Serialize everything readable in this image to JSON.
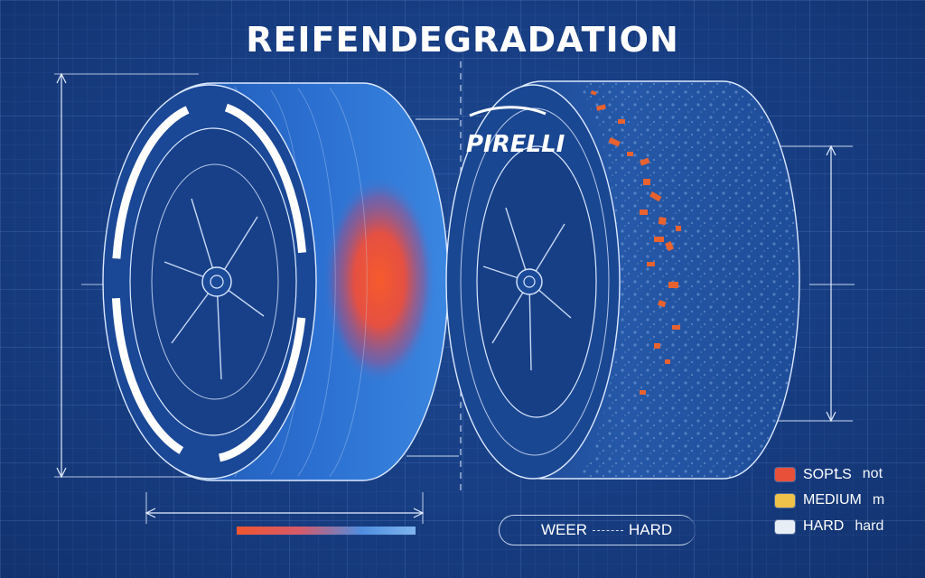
{
  "title": "REIFENDEGRADATION",
  "brand": {
    "logo_text": "PIRELLI"
  },
  "scale": {
    "left_label": "WEER",
    "right_label": "HARD"
  },
  "legend": {
    "items": [
      {
        "label": "SOPꝈS",
        "sub": "not",
        "color": "#e8503a"
      },
      {
        "label": "MEDIUM",
        "sub": "m",
        "color": "#f0c24a"
      },
      {
        "label": "HARD",
        "sub": "hard",
        "color": "#e8eef6"
      }
    ]
  },
  "colors": {
    "background": "#163a7c",
    "line": "#e6efff",
    "heat": "#f0552e",
    "wear": "#e8622f"
  }
}
